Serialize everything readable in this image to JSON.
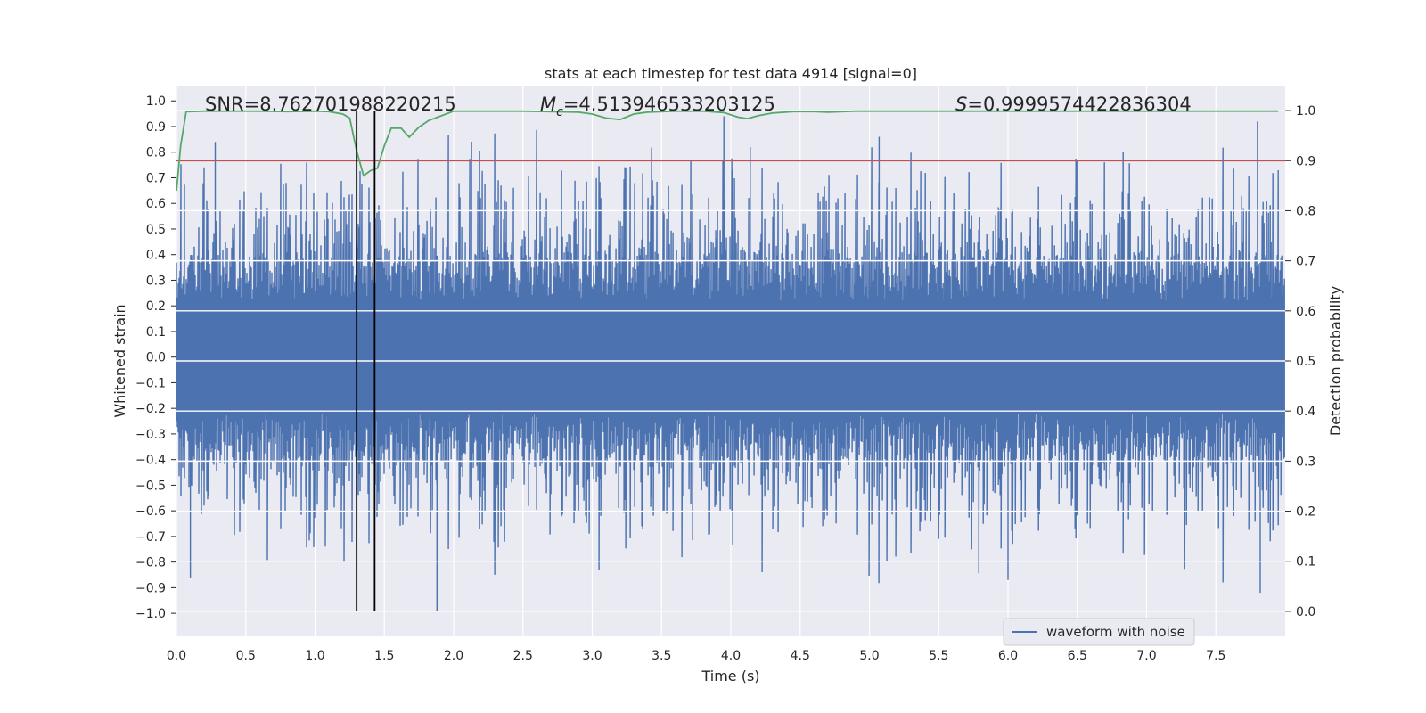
{
  "chart_data": {
    "type": "line",
    "title": "stats at each timestep for test data 4914 [signal=0]",
    "xlabel": "Time (s)",
    "ylabel_left": "Whitened strain",
    "ylabel_right": "Detection probability",
    "xlim": [
      0.0,
      8.0
    ],
    "ylim_left": [
      -1.09,
      1.06
    ],
    "ylim_right": [
      -0.05,
      1.05
    ],
    "x_ticks": [
      "0.0",
      "0.5",
      "1.0",
      "1.5",
      "2.0",
      "2.5",
      "3.0",
      "3.5",
      "4.0",
      "4.5",
      "5.0",
      "5.5",
      "6.0",
      "6.5",
      "7.0",
      "7.5"
    ],
    "y_ticks_left": [
      "1.0",
      "0.9",
      "0.8",
      "0.7",
      "0.6",
      "0.5",
      "0.4",
      "0.3",
      "0.2",
      "0.1",
      "0.0",
      "−0.1",
      "−0.2",
      "−0.3",
      "−0.4",
      "−0.5",
      "−0.6",
      "−0.7",
      "−0.8",
      "−0.9",
      "−1.0"
    ],
    "y_ticks_right": [
      "1.0",
      "0.9",
      "0.8",
      "0.7",
      "0.6",
      "0.5",
      "0.4",
      "0.3",
      "0.2",
      "0.1",
      "0.0"
    ],
    "annotations": {
      "snr": "SNR=8.762701988220215",
      "mc_symbol": "M",
      "mc_sub": "c",
      "mc_value": "=4.513946533203125",
      "s_symbol": "S",
      "s_value": "=0.9999574422836304"
    },
    "legend": {
      "label": "waveform with noise",
      "location": "lower-right"
    },
    "series": [
      {
        "name": "waveform with noise",
        "axis": "left",
        "color": "#4c72b0",
        "sample_rate_hz": 2048,
        "t_end_s": 7.995,
        "amplitude_envelope": [
          0.4,
          0.9
        ],
        "notable_peaks": [
          [
            0.28,
            0.84
          ],
          [
            1.88,
            -0.99
          ],
          [
            3.95,
            0.94
          ],
          [
            4.14,
            0.82
          ],
          [
            5.07,
            0.86
          ],
          [
            7.8,
            0.92
          ],
          [
            7.82,
            -0.92
          ],
          [
            0.1,
            -0.86
          ],
          [
            6.0,
            -0.87
          ]
        ]
      },
      {
        "name": "detection probability",
        "axis": "right",
        "color": "#55a868",
        "x": [
          0.0,
          0.03,
          0.07,
          0.1,
          0.2,
          0.4,
          0.6,
          0.8,
          1.0,
          1.1,
          1.2,
          1.25,
          1.3,
          1.35,
          1.4,
          1.45,
          1.5,
          1.55,
          1.62,
          1.68,
          1.75,
          1.82,
          2.0,
          2.5,
          2.9,
          3.0,
          3.1,
          3.2,
          3.3,
          3.4,
          3.6,
          3.8,
          3.95,
          4.05,
          4.12,
          4.2,
          4.3,
          4.45,
          4.6,
          4.7,
          4.9,
          5.5,
          6.5,
          7.5,
          7.95
        ],
        "values": [
          0.84,
          0.93,
          0.998,
          0.998,
          0.999,
          0.999,
          0.999,
          0.998,
          0.999,
          0.998,
          0.993,
          0.985,
          0.92,
          0.87,
          0.88,
          0.885,
          0.93,
          0.965,
          0.965,
          0.947,
          0.967,
          0.98,
          0.999,
          0.999,
          0.997,
          0.993,
          0.985,
          0.982,
          0.993,
          0.997,
          0.999,
          0.999,
          0.996,
          0.987,
          0.984,
          0.99,
          0.995,
          0.998,
          0.998,
          0.997,
          0.999,
          0.999,
          0.999,
          0.999,
          0.999
        ]
      },
      {
        "name": "threshold",
        "axis": "right",
        "color": "#c44e52",
        "value": 0.9
      }
    ],
    "vertical_lines": [
      1.3,
      1.43
    ],
    "colors": {
      "background": "#eaeaf2",
      "grid": "#ffffff",
      "text": "#262626",
      "marker_line": "#000000"
    }
  }
}
